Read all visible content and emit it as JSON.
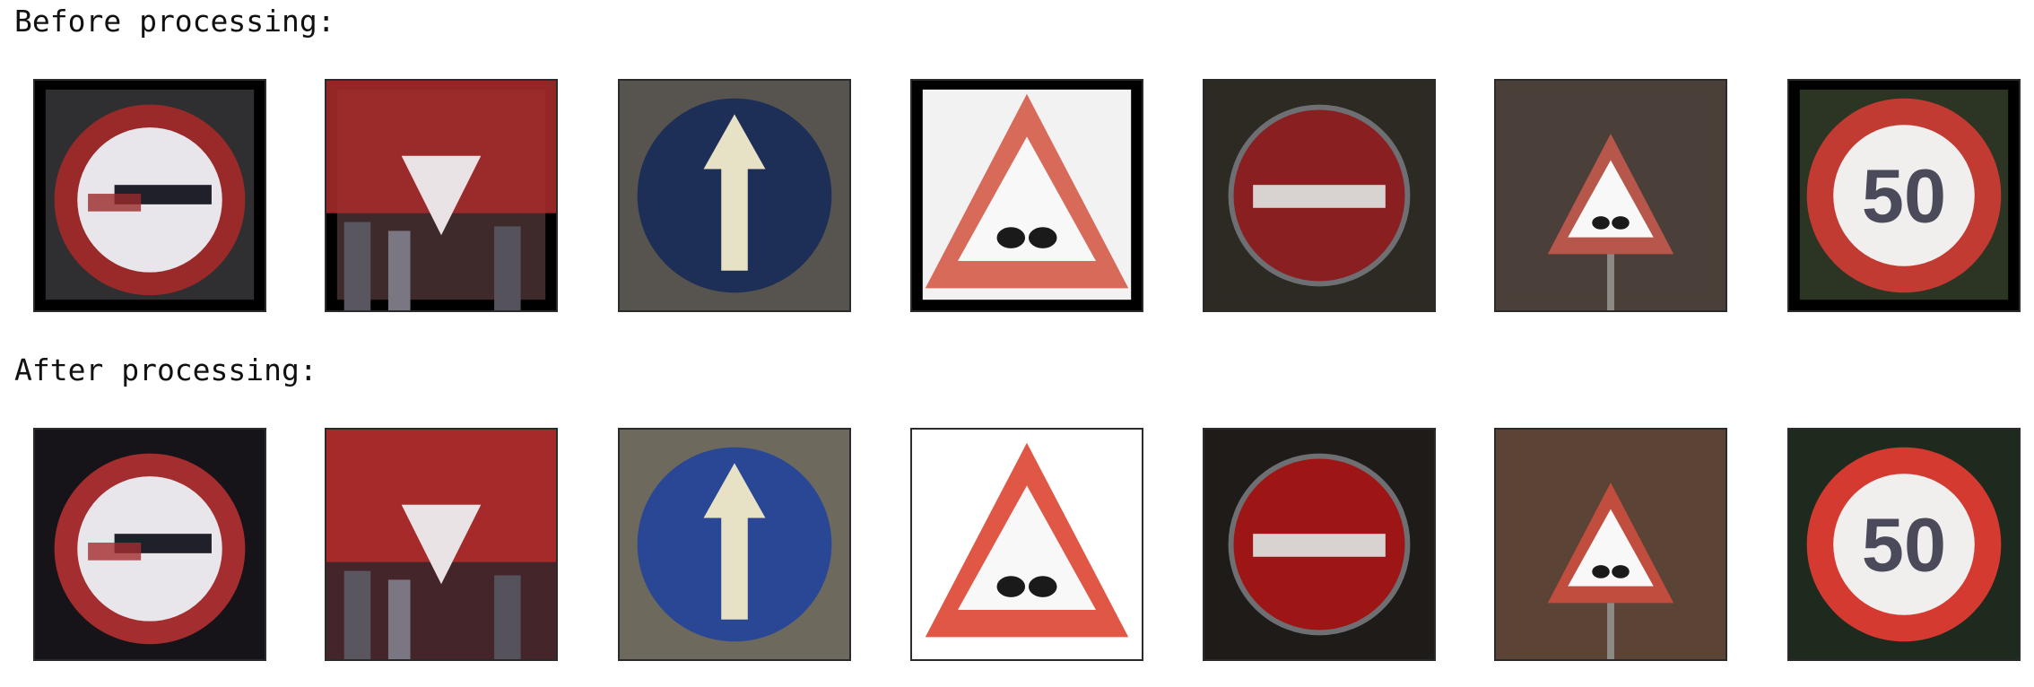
{
  "labels": {
    "before": "Before processing:",
    "after": "After processing:"
  },
  "rows": [
    {
      "id": "before",
      "images": [
        {
          "sign": "no-passing",
          "background": "#2f2f31",
          "frame": "#000000",
          "tint": "#9a2a2a"
        },
        {
          "sign": "yield",
          "background": "#3e2a2b",
          "frame": "#000000",
          "tint": "#a52a2a"
        },
        {
          "sign": "ahead-only",
          "background": "#57544f",
          "frame": "#57544f",
          "tint": "#1e2f57"
        },
        {
          "sign": "bumpy-road",
          "background": "#f2f2f2",
          "frame": "#000000",
          "tint": "#d86a5a"
        },
        {
          "sign": "no-entry",
          "background": "#2d2a24",
          "frame": "#2d2a24",
          "tint": "#8a1f22"
        },
        {
          "sign": "bumpy-road-small",
          "background": "#4b4039",
          "frame": "#4b4039",
          "tint": "#b7574c"
        },
        {
          "sign": "speed-limit-50",
          "background": "#2c3424",
          "frame": "#000000",
          "tint": "#c23b32",
          "text": "50"
        }
      ]
    },
    {
      "id": "after",
      "images": [
        {
          "sign": "no-passing",
          "background": "#161418",
          "frame": "#161418",
          "tint": "#a42d2f"
        },
        {
          "sign": "yield",
          "background": "#43252a",
          "frame": "#43252a",
          "tint": "#b22b2b"
        },
        {
          "sign": "ahead-only",
          "background": "#6d6a5d",
          "frame": "#6d6a5d",
          "tint": "#2a4796"
        },
        {
          "sign": "bumpy-road",
          "background": "#ffffff",
          "frame": "#ffffff",
          "tint": "#e05746"
        },
        {
          "sign": "no-entry",
          "background": "#1f1b18",
          "frame": "#1f1b18",
          "tint": "#9e1516"
        },
        {
          "sign": "bumpy-road-small",
          "background": "#5b4335",
          "frame": "#5b4335",
          "tint": "#c14d3e"
        },
        {
          "sign": "speed-limit-50",
          "background": "#1f2a1e",
          "frame": "#1f2a1e",
          "tint": "#d53a31",
          "text": "50"
        }
      ]
    }
  ]
}
